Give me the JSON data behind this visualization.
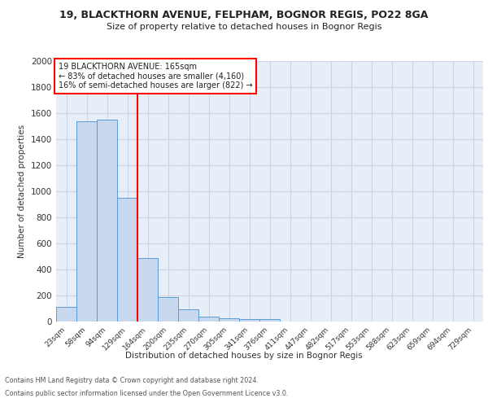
{
  "title1": "19, BLACKTHORN AVENUE, FELPHAM, BOGNOR REGIS, PO22 8GA",
  "title2": "Size of property relative to detached houses in Bognor Regis",
  "xlabel": "Distribution of detached houses by size in Bognor Regis",
  "ylabel": "Number of detached properties",
  "footer1": "Contains HM Land Registry data © Crown copyright and database right 2024.",
  "footer2": "Contains public sector information licensed under the Open Government Licence v3.0.",
  "annotation_line1": "19 BLACKTHORN AVENUE: 165sqm",
  "annotation_line2": "← 83% of detached houses are smaller (4,160)",
  "annotation_line3": "16% of semi-detached houses are larger (822) →",
  "bar_labels": [
    "23sqm",
    "58sqm",
    "94sqm",
    "129sqm",
    "164sqm",
    "200sqm",
    "235sqm",
    "270sqm",
    "305sqm",
    "341sqm",
    "376sqm",
    "411sqm",
    "447sqm",
    "482sqm",
    "517sqm",
    "553sqm",
    "588sqm",
    "623sqm",
    "659sqm",
    "694sqm",
    "729sqm"
  ],
  "bar_values": [
    110,
    1540,
    1550,
    950,
    490,
    185,
    95,
    38,
    28,
    18,
    18,
    0,
    0,
    0,
    0,
    0,
    0,
    0,
    0,
    0,
    0
  ],
  "bar_color": "#c8d9ef",
  "bar_edge_color": "#5b9bd5",
  "red_line_index": 4,
  "ylim": [
    0,
    2000
  ],
  "yticks": [
    0,
    200,
    400,
    600,
    800,
    1000,
    1200,
    1400,
    1600,
    1800,
    2000
  ],
  "grid_color": "#c8d4e8",
  "background_color": "#e8eef8",
  "title1_fontsize": 9,
  "title2_fontsize": 8
}
